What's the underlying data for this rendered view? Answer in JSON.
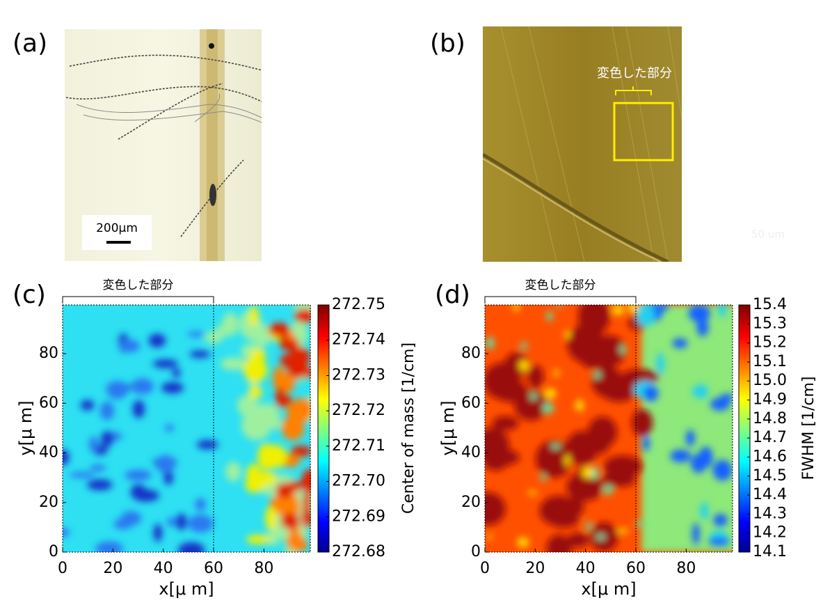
{
  "panels": [
    {
      "label": "(a)",
      "scale_bar": "200μm"
    },
    {
      "label": "(b)",
      "annotation": "変色した部分",
      "scale_bar": "50 um"
    },
    {
      "label": "(c)",
      "bracket": "変色した部分",
      "x_label": "x[μ m]",
      "y_label": "y[μ m]",
      "x_ticks": [
        "0",
        "20",
        "40",
        "60",
        "80"
      ],
      "y_ticks": [
        "0",
        "20",
        "40",
        "60",
        "80"
      ],
      "colorbar_label": "Center of mass [1/cm]",
      "colorbar_ticks": [
        "272.75",
        "272.74",
        "272.73",
        "272.72",
        "272.71",
        "272.70",
        "272.69",
        "272.68"
      ]
    },
    {
      "label": "(d)",
      "bracket": "変色した部分",
      "x_label": "x[μ m]",
      "y_label": "y[μ m]",
      "x_ticks": [
        "0",
        "20",
        "40",
        "60",
        "80"
      ],
      "y_ticks": [
        "0",
        "20",
        "40",
        "60",
        "80"
      ],
      "colorbar_label": "FWHM [1/cm]",
      "colorbar_ticks": [
        "15.4",
        "15.3",
        "15.2",
        "15.1",
        "15.0",
        "14.9",
        "14.8",
        "14.7",
        "14.6",
        "14.5",
        "14.4",
        "14.3",
        "14.2",
        "14.1"
      ]
    }
  ]
}
